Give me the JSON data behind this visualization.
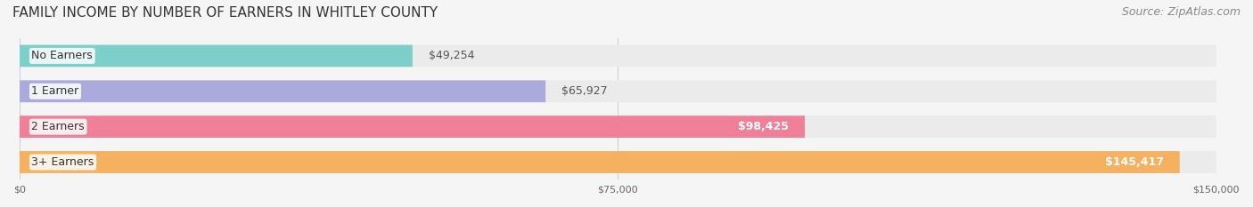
{
  "title": "FAMILY INCOME BY NUMBER OF EARNERS IN WHITLEY COUNTY",
  "source": "Source: ZipAtlas.com",
  "categories": [
    "No Earners",
    "1 Earner",
    "2 Earners",
    "3+ Earners"
  ],
  "values": [
    49254,
    65927,
    98425,
    145417
  ],
  "labels": [
    "$49,254",
    "$65,927",
    "$98,425",
    "$145,417"
  ],
  "bar_colors": [
    "#7DCFCA",
    "#AAAADD",
    "#F08098",
    "#F5B060"
  ],
  "bar_bg_color": "#EBEBEB",
  "xlim": [
    0,
    150000
  ],
  "xticks": [
    0,
    75000,
    150000
  ],
  "xtick_labels": [
    "$0",
    "$75,000",
    "$150,000"
  ],
  "background_color": "#F5F5F5",
  "title_fontsize": 11,
  "source_fontsize": 9,
  "label_fontsize": 9,
  "cat_fontsize": 9
}
